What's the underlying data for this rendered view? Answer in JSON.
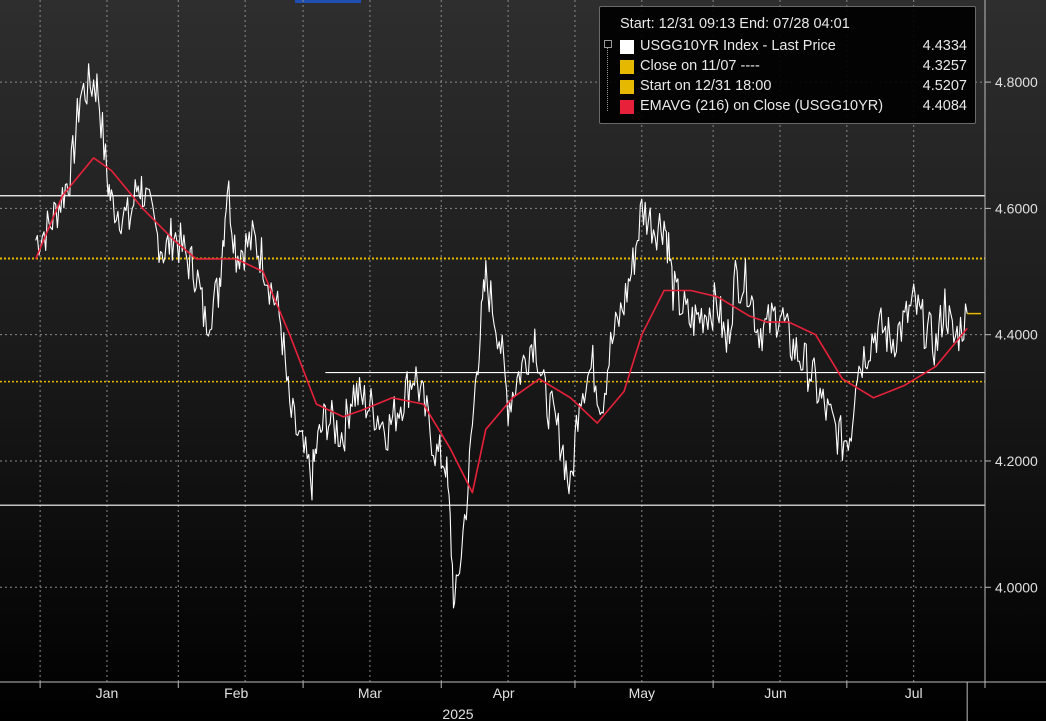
{
  "colors": {
    "price_line": "#ffffff",
    "close_line": "#e6b800",
    "start_line": "#e6b800",
    "ema_line": "#e8213a",
    "grid": "#8a8a8a",
    "support_resistance": "#ffffff"
  },
  "legend": {
    "header": "Start: 12/31 09:13 End: 07/28 04:01",
    "rows": [
      {
        "label": "USGG10YR Index - Last Price",
        "value": "4.4334",
        "color": "#ffffff"
      },
      {
        "label": "Close on 11/07 ----",
        "value": "4.3257",
        "color": "#e6b800"
      },
      {
        "label": "Start on 12/31 18:00",
        "value": "4.5207",
        "color": "#e6b800"
      },
      {
        "label": "EMAVG (216)  on Close (USGG10YR)",
        "value": "4.4084",
        "color": "#e8213a"
      }
    ]
  },
  "chart_data": {
    "type": "line",
    "x_axis": {
      "month_labels": [
        "Jan",
        "Feb",
        "Mar",
        "Apr",
        "May",
        "Jun",
        "Jul"
      ],
      "year_label": "2025"
    },
    "y_axis": {
      "side": "right",
      "tick_labels": [
        "4.8000",
        "4.6000",
        "4.4000",
        "4.2000",
        "4.0000"
      ],
      "ticks": [
        4.8,
        4.6,
        4.4,
        4.2,
        4.0
      ],
      "ylim": [
        3.85,
        4.93
      ]
    },
    "grid": true,
    "legend_position": "top-right",
    "series": [
      {
        "name": "USGG10YR Index - Last Price",
        "x": [
          "2024-12-31",
          "2025-01-03",
          "2025-01-06",
          "2025-01-08",
          "2025-01-10",
          "2025-01-13",
          "2025-01-14",
          "2025-01-16",
          "2025-01-17",
          "2025-01-21",
          "2025-01-23",
          "2025-01-24",
          "2025-01-27",
          "2025-01-29",
          "2025-01-31",
          "2025-02-03",
          "2025-02-05",
          "2025-02-07",
          "2025-02-10",
          "2025-02-11",
          "2025-02-12",
          "2025-02-14",
          "2025-02-18",
          "2025-02-20",
          "2025-02-24",
          "2025-02-26",
          "2025-03-03",
          "2025-03-04",
          "2025-03-06",
          "2025-03-10",
          "2025-03-12",
          "2025-03-14",
          "2025-03-17",
          "2025-03-20",
          "2025-03-24",
          "2025-03-26",
          "2025-03-28",
          "2025-03-31",
          "2025-04-02",
          "2025-04-03",
          "2025-04-04",
          "2025-04-07",
          "2025-04-09",
          "2025-04-10",
          "2025-04-11",
          "2025-04-14",
          "2025-04-16",
          "2025-04-18",
          "2025-04-22",
          "2025-04-24",
          "2025-04-28",
          "2025-04-30",
          "2025-05-02",
          "2025-05-05",
          "2025-05-07",
          "2025-05-09",
          "2025-05-12",
          "2025-05-14",
          "2025-05-16",
          "2025-05-19",
          "2025-05-21",
          "2025-05-22",
          "2025-05-23",
          "2025-05-27",
          "2025-05-29",
          "2025-06-02",
          "2025-06-04",
          "2025-06-06",
          "2025-06-09",
          "2025-06-11",
          "2025-06-13",
          "2025-06-16",
          "2025-06-18",
          "2025-06-20",
          "2025-06-23",
          "2025-06-25",
          "2025-06-27",
          "2025-06-30",
          "2025-07-02",
          "2025-07-03",
          "2025-07-07",
          "2025-07-09",
          "2025-07-11",
          "2025-07-14",
          "2025-07-16",
          "2025-07-18",
          "2025-07-21",
          "2025-07-23",
          "2025-07-25",
          "2025-07-28"
        ],
        "y": [
          4.55,
          4.57,
          4.62,
          4.66,
          4.78,
          4.8,
          4.79,
          4.65,
          4.61,
          4.58,
          4.64,
          4.63,
          4.56,
          4.53,
          4.56,
          4.52,
          4.5,
          4.42,
          4.47,
          4.55,
          4.64,
          4.53,
          4.55,
          4.52,
          4.42,
          4.28,
          4.17,
          4.22,
          4.27,
          4.24,
          4.31,
          4.3,
          4.28,
          4.25,
          4.31,
          4.34,
          4.29,
          4.21,
          4.2,
          4.1,
          3.96,
          4.16,
          4.35,
          4.42,
          4.49,
          4.4,
          4.29,
          4.33,
          4.4,
          4.31,
          4.23,
          4.15,
          4.31,
          4.35,
          4.29,
          4.38,
          4.45,
          4.51,
          4.6,
          4.57,
          4.58,
          4.54,
          4.47,
          4.42,
          4.43,
          4.45,
          4.38,
          4.49,
          4.48,
          4.41,
          4.41,
          4.44,
          4.39,
          4.37,
          4.34,
          4.3,
          4.27,
          4.23,
          4.25,
          4.34,
          4.4,
          4.41,
          4.39,
          4.42,
          4.45,
          4.42,
          4.38,
          4.45,
          4.39,
          4.43
        ],
        "last": 4.4334
      },
      {
        "name": "Close on 11/07 ----",
        "value": 4.3257
      },
      {
        "name": "Start on 12/31 18:00",
        "value": 4.5207
      },
      {
        "name": "EMAVG (216)  on Close (USGG10YR)",
        "x": [
          "2024-12-31",
          "2025-01-06",
          "2025-01-13",
          "2025-01-17",
          "2025-01-24",
          "2025-01-31",
          "2025-02-05",
          "2025-02-10",
          "2025-02-14",
          "2025-02-20",
          "2025-02-26",
          "2025-03-04",
          "2025-03-10",
          "2025-03-14",
          "2025-03-21",
          "2025-03-28",
          "2025-04-03",
          "2025-04-08",
          "2025-04-11",
          "2025-04-17",
          "2025-04-23",
          "2025-04-30",
          "2025-05-06",
          "2025-05-12",
          "2025-05-16",
          "2025-05-21",
          "2025-05-27",
          "2025-06-02",
          "2025-06-09",
          "2025-06-13",
          "2025-06-18",
          "2025-06-24",
          "2025-06-30",
          "2025-07-07",
          "2025-07-14",
          "2025-07-21",
          "2025-07-28"
        ],
        "y": [
          4.52,
          4.62,
          4.68,
          4.66,
          4.6,
          4.55,
          4.52,
          4.52,
          4.52,
          4.5,
          4.4,
          4.29,
          4.27,
          4.28,
          4.3,
          4.29,
          4.22,
          4.15,
          4.25,
          4.3,
          4.33,
          4.3,
          4.26,
          4.31,
          4.4,
          4.47,
          4.47,
          4.46,
          4.43,
          4.42,
          4.42,
          4.4,
          4.33,
          4.3,
          4.32,
          4.35,
          4.41
        ],
        "last": 4.4084
      }
    ],
    "horizontal_levels": [
      4.62,
      4.34,
      4.13
    ]
  }
}
